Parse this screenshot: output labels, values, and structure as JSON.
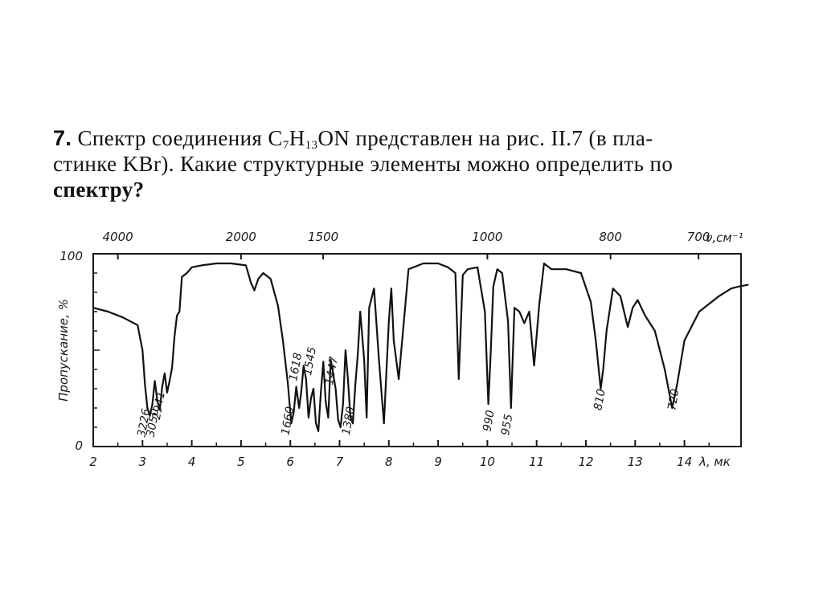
{
  "problem": {
    "number": "7.",
    "text_part1": "Спектр соединения C",
    "sub1": "7",
    "text_part2": "H",
    "sub2": "13",
    "text_part3": "ON представлен на рис. II.7 (в пла-",
    "line2": "стинке KBr). Какие структурные элементы можно определить по",
    "line3": "спектру?"
  },
  "chart_data": {
    "type": "line",
    "ylabel": "Пропускание, %",
    "x_bottom_label": "λ, мк",
    "x_top_label": "ν,см⁻¹",
    "y_ticks": [
      "0",
      "100"
    ],
    "ylim": [
      0,
      100
    ],
    "xlim": [
      2,
      15.3
    ],
    "x_bottom_ticks": [
      "2",
      "3",
      "4",
      "5",
      "6",
      "7",
      "8",
      "9",
      "10",
      "11",
      "12",
      "13",
      "14"
    ],
    "x_top_ticks": [
      {
        "label": "4000",
        "um": 2.5
      },
      {
        "label": "2000",
        "um": 5.0
      },
      {
        "label": "1500",
        "um": 6.667
      },
      {
        "label": "1000",
        "um": 10.0
      },
      {
        "label": "800",
        "um": 12.5
      },
      {
        "label": "700",
        "um": 14.286
      }
    ],
    "peak_labels": [
      {
        "label": "3226",
        "um": 3.1,
        "y": 12
      },
      {
        "label": "3050",
        "um": 3.28,
        "y": 12
      },
      {
        "label": "2941",
        "um": 3.4,
        "y": 21
      },
      {
        "label": "1660",
        "um": 6.02,
        "y": 13
      },
      {
        "label": "1618",
        "um": 6.18,
        "y": 41
      },
      {
        "label": "1545",
        "um": 6.47,
        "y": 44
      },
      {
        "label": "1447",
        "um": 6.91,
        "y": 39
      },
      {
        "label": "1380",
        "um": 7.25,
        "y": 13
      },
      {
        "label": "990",
        "um": 10.1,
        "y": 13
      },
      {
        "label": "955",
        "um": 10.47,
        "y": 11
      },
      {
        "label": "810",
        "um": 12.35,
        "y": 24
      },
      {
        "label": "720",
        "um": 13.85,
        "y": 24
      }
    ],
    "series": [
      {
        "x": [
          2.0,
          2.3,
          2.6,
          2.9,
          3.0,
          3.05,
          3.1,
          3.15,
          3.2,
          3.25,
          3.3,
          3.35,
          3.4,
          3.45,
          3.5,
          3.55,
          3.6,
          3.65,
          3.7,
          3.75,
          3.8,
          3.9,
          4.0,
          4.2,
          4.5,
          4.8,
          5.1,
          5.2,
          5.27,
          5.35,
          5.45,
          5.6,
          5.75,
          5.85,
          5.95,
          6.02,
          6.07,
          6.12,
          6.18,
          6.22,
          6.27,
          6.32,
          6.37,
          6.42,
          6.47,
          6.52,
          6.57,
          6.62,
          6.67,
          6.72,
          6.77,
          6.82,
          6.87,
          6.92,
          6.97,
          7.02,
          7.07,
          7.12,
          7.17,
          7.22,
          7.27,
          7.32,
          7.37,
          7.42,
          7.5,
          7.55,
          7.6,
          7.7,
          7.8,
          7.9,
          8.0,
          8.05,
          8.1,
          8.2,
          8.4,
          8.7,
          9.0,
          9.2,
          9.35,
          9.42,
          9.5,
          9.6,
          9.8,
          9.95,
          10.02,
          10.07,
          10.12,
          10.2,
          10.3,
          10.42,
          10.48,
          10.55,
          10.65,
          10.75,
          10.85,
          10.95,
          11.05,
          11.15,
          11.3,
          11.6,
          11.9,
          12.1,
          12.2,
          12.3,
          12.35,
          12.42,
          12.55,
          12.7,
          12.85,
          12.95,
          13.05,
          13.2,
          13.4,
          13.6,
          13.75,
          13.85,
          14.0,
          14.3,
          14.7,
          14.95,
          15.1,
          15.3
        ],
        "y": [
          72,
          70,
          67,
          63,
          50,
          32,
          20,
          16,
          22,
          34,
          24,
          19,
          31,
          38,
          28,
          34,
          41,
          57,
          68,
          70,
          88,
          90,
          93,
          94,
          95,
          95,
          94,
          85,
          81,
          87,
          90,
          87,
          73,
          55,
          33,
          12,
          18,
          31,
          20,
          28,
          42,
          35,
          15,
          25,
          30,
          12,
          8,
          28,
          44,
          23,
          15,
          45,
          38,
          30,
          14,
          10,
          22,
          50,
          35,
          15,
          12,
          32,
          48,
          70,
          45,
          15,
          72,
          82,
          45,
          12,
          65,
          82,
          55,
          35,
          92,
          95,
          95,
          93,
          90,
          35,
          89,
          92,
          93,
          70,
          22,
          50,
          83,
          92,
          90,
          65,
          20,
          72,
          70,
          64,
          70,
          42,
          73,
          95,
          92,
          92,
          90,
          75,
          55,
          30,
          40,
          60,
          82,
          78,
          62,
          72,
          76,
          68,
          60,
          40,
          20,
          32,
          55,
          70,
          78,
          82,
          83,
          84
        ]
      }
    ]
  }
}
